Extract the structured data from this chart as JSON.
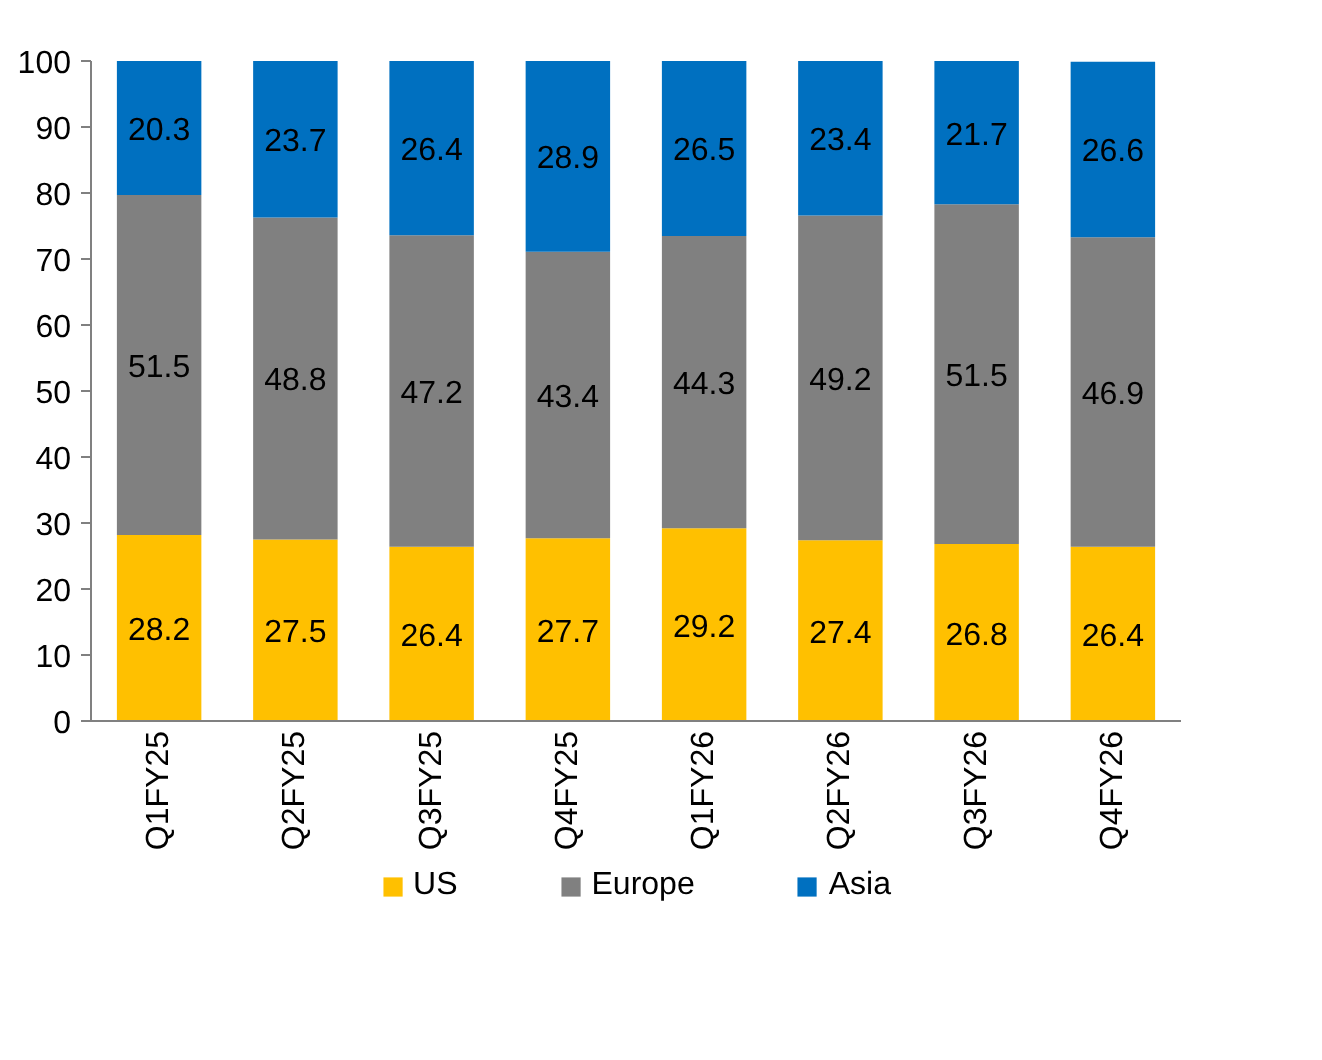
{
  "chart_data": {
    "type": "bar",
    "stacked": true,
    "categories": [
      "Q1FY25",
      "Q2FY25",
      "Q3FY25",
      "Q4FY25",
      "Q1FY26",
      "Q2FY26",
      "Q3FY26",
      "Q4FY26"
    ],
    "series": [
      {
        "name": "US",
        "color": "#ffc000",
        "values": [
          28.2,
          27.5,
          26.4,
          27.7,
          29.2,
          27.4,
          26.8,
          26.4
        ]
      },
      {
        "name": "Europe",
        "color": "#808080",
        "values": [
          51.5,
          48.8,
          47.2,
          43.4,
          44.3,
          49.2,
          51.5,
          46.9
        ]
      },
      {
        "name": "Asia",
        "color": "#0070c0",
        "values": [
          20.3,
          23.7,
          26.4,
          28.9,
          26.5,
          23.4,
          21.7,
          26.6
        ]
      }
    ],
    "ylim": [
      0,
      100
    ],
    "yticks": [
      0,
      10,
      20,
      30,
      40,
      50,
      60,
      70,
      80,
      90,
      100
    ],
    "data_labels": true,
    "legend": "bottom",
    "grid": false
  }
}
